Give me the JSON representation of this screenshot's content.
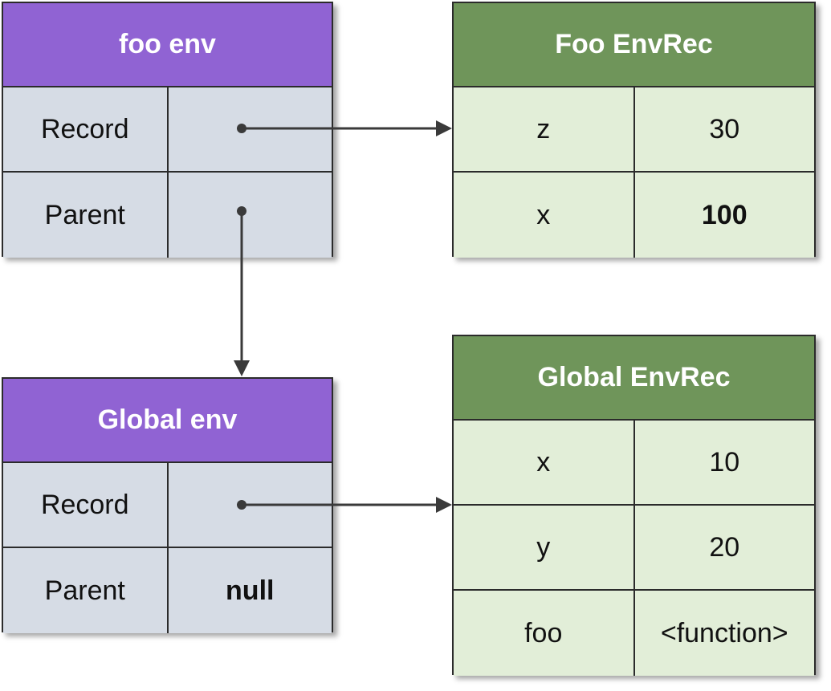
{
  "foo_env": {
    "title": "foo env",
    "rows": [
      {
        "label": "Record",
        "value": ""
      },
      {
        "label": "Parent",
        "value": ""
      }
    ]
  },
  "foo_envrec": {
    "title": "Foo EnvRec",
    "rows": [
      {
        "name": "z",
        "value": "30"
      },
      {
        "name": "x",
        "value": "100"
      }
    ]
  },
  "global_env": {
    "title": "Global env",
    "rows": [
      {
        "label": "Record",
        "value": ""
      },
      {
        "label": "Parent",
        "value": "null"
      }
    ]
  },
  "global_envrec": {
    "title": "Global EnvRec",
    "rows": [
      {
        "name": "x",
        "value": "10"
      },
      {
        "name": "y",
        "value": "20"
      },
      {
        "name": "foo",
        "value": "<function>"
      }
    ]
  },
  "colors": {
    "env_header": "#9063d3",
    "env_body": "#d6dce5",
    "rec_header": "#6f955a",
    "rec_body": "#e2eed8",
    "border": "#2b2b2b",
    "arrow": "#3a3a3a"
  }
}
